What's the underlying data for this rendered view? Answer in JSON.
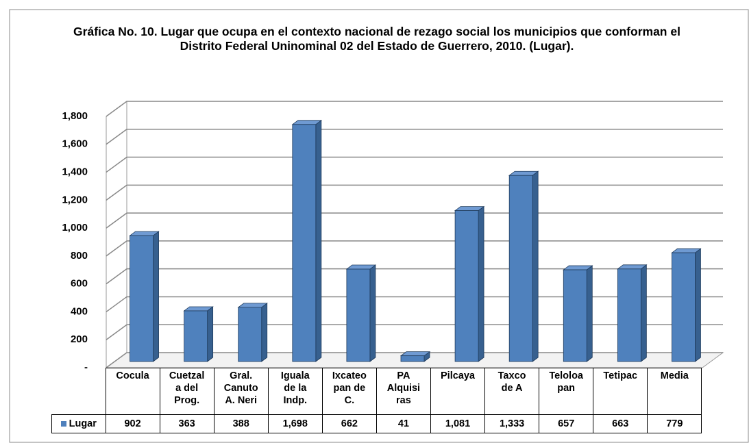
{
  "chart_data": {
    "type": "bar",
    "title": "Gráfica No. 10. Lugar que ocupa en el contexto nacional de rezago social los municipios que conforman el Distrito Federal Uninominal 02 del Estado de Guerrero, 2010. (Lugar).",
    "categories": [
      "Cocula",
      "Cuetzal\na del\nProg.",
      "Gral.\nCanuto\nA. Neri",
      "Iguala\nde la\nIndp.",
      "Ixcateo\npan de\nC.",
      "PA\nAlquisi\nras",
      "Pilcaya",
      "Taxco\nde A",
      "Teloloa\npan",
      "Tetipac",
      "Media"
    ],
    "series": [
      {
        "name": "Lugar",
        "color": "#4f81bd",
        "values": [
          902,
          363,
          388,
          1698,
          662,
          41,
          1081,
          1333,
          657,
          663,
          779
        ],
        "value_labels": [
          "902",
          "363",
          "388",
          "1,698",
          "662",
          "41",
          "1,081",
          "1,333",
          "657",
          "663",
          "779"
        ]
      }
    ],
    "ylim": [
      0,
      1800
    ],
    "yticks": [
      {
        "value": 0,
        "label": "-"
      },
      200,
      400,
      600,
      800,
      {
        "value": 1000,
        "label": "1,000"
      },
      {
        "value": 1200,
        "label": "1,200"
      },
      {
        "value": 1400,
        "label": "1,400"
      },
      {
        "value": 1600,
        "label": "1,600"
      },
      {
        "value": 1800,
        "label": "1,800"
      }
    ],
    "grid": true
  }
}
